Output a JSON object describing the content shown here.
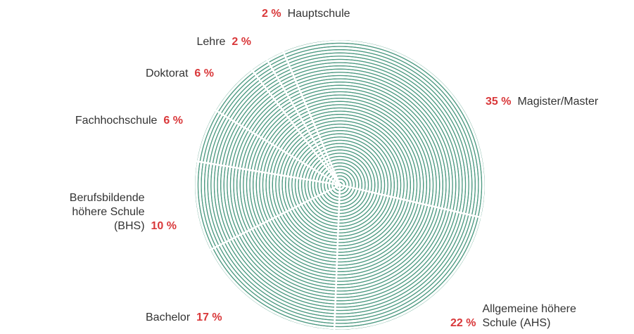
{
  "chart_data": {
    "type": "pie",
    "categories": [
      "Magister/Master",
      "Allgemeine höhere Schule (AHS)",
      "Bachelor",
      "Berufsbildende höhere Schule (BHS)",
      "Fachhochschule",
      "Doktorat",
      "Lehre",
      "Hauptschule"
    ],
    "values": [
      35,
      22,
      17,
      10,
      6,
      6,
      2,
      2
    ],
    "value_labels": [
      "35 %",
      "22 %",
      "17 %",
      "10 %",
      "6 %",
      "6 %",
      "2 %",
      "2 %"
    ],
    "color": "#4e9a82",
    "label_color": "#d9383a"
  }
}
